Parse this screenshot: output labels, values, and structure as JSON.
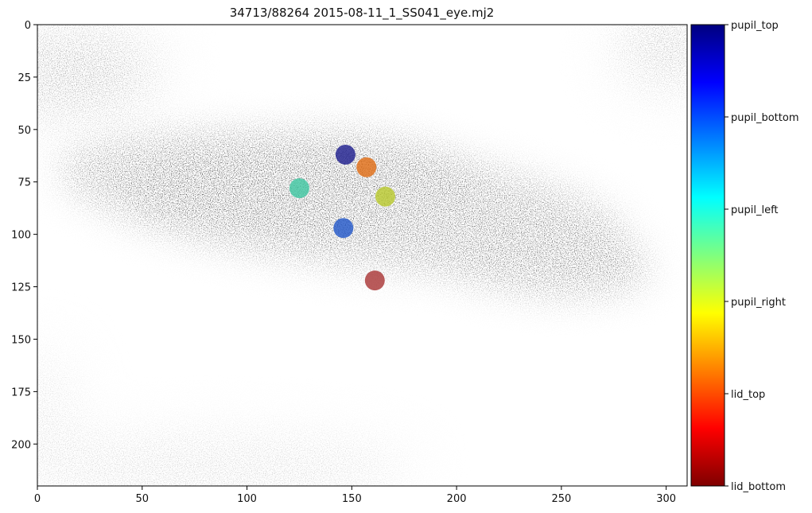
{
  "title": "34713/88264 2015-08-11_1_SS041_eye.mj2",
  "chart_data": {
    "type": "scatter",
    "title": "34713/88264 2015-08-11_1_SS041_eye.mj2",
    "xlim": [
      0,
      310
    ],
    "ylim": [
      220,
      0
    ],
    "y_inverted": true,
    "x_ticks": [
      0,
      50,
      100,
      150,
      200,
      250,
      300
    ],
    "y_ticks": [
      0,
      25,
      50,
      75,
      100,
      125,
      150,
      175,
      200
    ],
    "background": "grayscale eye video frame",
    "colormap": "jet",
    "points": [
      {
        "label": "pupil_top",
        "x": 147,
        "y": 62,
        "color": "#1a1a8c"
      },
      {
        "label": "lid_top",
        "x": 157,
        "y": 68,
        "color": "#e06a10"
      },
      {
        "label": "pupil_left",
        "x": 125,
        "y": 78,
        "color": "#3cc6a0"
      },
      {
        "label": "pupil_right",
        "x": 166,
        "y": 82,
        "color": "#b8c82a"
      },
      {
        "label": "pupil_bottom",
        "x": 146,
        "y": 97,
        "color": "#1f55c8"
      },
      {
        "label": "lid_bottom",
        "x": 161,
        "y": 122,
        "color": "#a83232"
      }
    ],
    "colorbar": {
      "labels": [
        "pupil_top",
        "pupil_bottom",
        "pupil_left",
        "pupil_right",
        "lid_top",
        "lid_bottom"
      ],
      "colors_top_to_bottom": [
        "#00007f",
        "#0000ff",
        "#007fff",
        "#00ffff",
        "#7fff7f",
        "#ffff00",
        "#ff7f00",
        "#ff0000",
        "#7f0000"
      ]
    }
  }
}
